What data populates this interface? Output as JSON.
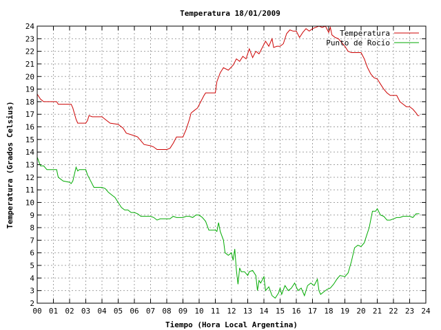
{
  "chart_data": {
    "type": "line",
    "title": "Temperatura 18/01/2009",
    "xlabel": "Tiempo (Hora Local Argentina)",
    "ylabel": "Temperatura (Grados Celsius)",
    "xlim": [
      0,
      24
    ],
    "ylim": [
      2,
      24
    ],
    "x_ticks": [
      "00",
      "01",
      "02",
      "03",
      "04",
      "05",
      "06",
      "07",
      "08",
      "09",
      "10",
      "11",
      "12",
      "13",
      "14",
      "15",
      "16",
      "17",
      "18",
      "19",
      "20",
      "21",
      "22",
      "23",
      "24"
    ],
    "y_ticks": [
      "2",
      "3",
      "4",
      "5",
      "6",
      "7",
      "8",
      "9",
      "10",
      "11",
      "12",
      "13",
      "14",
      "15",
      "16",
      "17",
      "18",
      "19",
      "20",
      "21",
      "22",
      "23",
      "24"
    ],
    "grid": true,
    "legend_position": "top-right",
    "series": [
      {
        "name": "Temperatura",
        "color": "#cc0000",
        "points": [
          [
            0.0,
            18.6
          ],
          [
            0.2,
            18.2
          ],
          [
            0.4,
            18.0
          ],
          [
            0.8,
            18.0
          ],
          [
            1.2,
            18.0
          ],
          [
            1.3,
            17.8
          ],
          [
            2.1,
            17.8
          ],
          [
            2.2,
            17.5
          ],
          [
            2.4,
            16.6
          ],
          [
            2.5,
            16.3
          ],
          [
            3.0,
            16.3
          ],
          [
            3.1,
            16.5
          ],
          [
            3.2,
            16.9
          ],
          [
            3.4,
            16.8
          ],
          [
            4.0,
            16.8
          ],
          [
            4.2,
            16.6
          ],
          [
            4.5,
            16.3
          ],
          [
            5.0,
            16.2
          ],
          [
            5.3,
            15.9
          ],
          [
            5.5,
            15.5
          ],
          [
            6.0,
            15.3
          ],
          [
            6.2,
            15.2
          ],
          [
            6.4,
            14.9
          ],
          [
            6.6,
            14.6
          ],
          [
            7.0,
            14.5
          ],
          [
            7.2,
            14.4
          ],
          [
            7.4,
            14.2
          ],
          [
            7.8,
            14.2
          ],
          [
            8.0,
            14.2
          ],
          [
            8.2,
            14.3
          ],
          [
            8.4,
            14.7
          ],
          [
            8.6,
            15.2
          ],
          [
            9.0,
            15.2
          ],
          [
            9.2,
            15.8
          ],
          [
            9.4,
            16.6
          ],
          [
            9.5,
            17.1
          ],
          [
            9.7,
            17.3
          ],
          [
            9.9,
            17.5
          ],
          [
            10.1,
            18.0
          ],
          [
            10.3,
            18.5
          ],
          [
            10.4,
            18.7
          ],
          [
            10.6,
            18.7
          ],
          [
            11.0,
            18.7
          ],
          [
            11.1,
            19.6
          ],
          [
            11.3,
            20.3
          ],
          [
            11.5,
            20.7
          ],
          [
            11.8,
            20.5
          ],
          [
            12.1,
            20.9
          ],
          [
            12.3,
            21.4
          ],
          [
            12.5,
            21.2
          ],
          [
            12.7,
            21.6
          ],
          [
            12.9,
            21.4
          ],
          [
            13.1,
            22.2
          ],
          [
            13.3,
            21.5
          ],
          [
            13.5,
            22.0
          ],
          [
            13.7,
            21.8
          ],
          [
            13.9,
            22.3
          ],
          [
            14.1,
            22.8
          ],
          [
            14.3,
            22.4
          ],
          [
            14.5,
            23.0
          ],
          [
            14.6,
            22.3
          ],
          [
            14.8,
            22.4
          ],
          [
            15.0,
            22.4
          ],
          [
            15.2,
            22.6
          ],
          [
            15.4,
            23.4
          ],
          [
            15.6,
            23.7
          ],
          [
            15.8,
            23.6
          ],
          [
            16.0,
            23.6
          ],
          [
            16.2,
            23.1
          ],
          [
            16.4,
            23.5
          ],
          [
            16.6,
            23.8
          ],
          [
            16.8,
            23.6
          ],
          [
            17.0,
            23.8
          ],
          [
            17.2,
            23.9
          ],
          [
            17.4,
            24.0
          ],
          [
            17.6,
            23.9
          ],
          [
            17.8,
            24.0
          ],
          [
            18.0,
            23.5
          ],
          [
            18.1,
            23.9
          ],
          [
            18.2,
            23.3
          ],
          [
            18.4,
            23.1
          ],
          [
            18.6,
            23.0
          ],
          [
            18.8,
            22.7
          ],
          [
            19.0,
            22.4
          ],
          [
            19.2,
            22.0
          ],
          [
            19.4,
            21.9
          ],
          [
            19.6,
            21.9
          ],
          [
            19.8,
            21.9
          ],
          [
            20.0,
            21.9
          ],
          [
            20.2,
            21.4
          ],
          [
            20.4,
            20.7
          ],
          [
            20.6,
            20.2
          ],
          [
            20.8,
            19.9
          ],
          [
            21.0,
            19.8
          ],
          [
            21.2,
            19.4
          ],
          [
            21.4,
            19.0
          ],
          [
            21.6,
            18.7
          ],
          [
            21.8,
            18.5
          ],
          [
            22.0,
            18.5
          ],
          [
            22.2,
            18.5
          ],
          [
            22.4,
            18.0
          ],
          [
            22.6,
            17.8
          ],
          [
            22.8,
            17.6
          ],
          [
            23.0,
            17.6
          ],
          [
            23.2,
            17.4
          ],
          [
            23.4,
            17.1
          ],
          [
            23.5,
            16.9
          ],
          [
            23.6,
            16.9
          ]
        ]
      },
      {
        "name": "Punto de Rocío",
        "color": "#00aa00",
        "points": [
          [
            0.0,
            13.6
          ],
          [
            0.2,
            12.9
          ],
          [
            0.4,
            12.9
          ],
          [
            0.6,
            12.6
          ],
          [
            1.0,
            12.6
          ],
          [
            1.2,
            12.6
          ],
          [
            1.3,
            12.0
          ],
          [
            1.6,
            11.7
          ],
          [
            2.0,
            11.6
          ],
          [
            2.1,
            11.5
          ],
          [
            2.2,
            11.7
          ],
          [
            2.4,
            12.8
          ],
          [
            2.5,
            12.5
          ],
          [
            2.6,
            12.6
          ],
          [
            3.0,
            12.6
          ],
          [
            3.1,
            12.2
          ],
          [
            3.3,
            11.7
          ],
          [
            3.5,
            11.2
          ],
          [
            4.0,
            11.2
          ],
          [
            4.2,
            11.1
          ],
          [
            4.4,
            10.8
          ],
          [
            4.6,
            10.6
          ],
          [
            4.8,
            10.4
          ],
          [
            5.0,
            10.0
          ],
          [
            5.2,
            9.6
          ],
          [
            5.4,
            9.4
          ],
          [
            5.6,
            9.4
          ],
          [
            5.8,
            9.2
          ],
          [
            6.0,
            9.2
          ],
          [
            6.2,
            9.1
          ],
          [
            6.4,
            8.9
          ],
          [
            6.6,
            8.9
          ],
          [
            7.0,
            8.9
          ],
          [
            7.2,
            8.8
          ],
          [
            7.4,
            8.6
          ],
          [
            7.6,
            8.7
          ],
          [
            8.0,
            8.7
          ],
          [
            8.2,
            8.7
          ],
          [
            8.4,
            8.9
          ],
          [
            8.6,
            8.8
          ],
          [
            9.0,
            8.8
          ],
          [
            9.2,
            8.9
          ],
          [
            9.4,
            8.9
          ],
          [
            9.6,
            8.8
          ],
          [
            9.8,
            9.0
          ],
          [
            10.0,
            9.0
          ],
          [
            10.2,
            8.8
          ],
          [
            10.4,
            8.5
          ],
          [
            10.6,
            7.8
          ],
          [
            11.0,
            7.8
          ],
          [
            11.1,
            7.7
          ],
          [
            11.2,
            8.4
          ],
          [
            11.3,
            7.7
          ],
          [
            11.5,
            7.0
          ],
          [
            11.6,
            6.0
          ],
          [
            11.8,
            5.8
          ],
          [
            12.0,
            6.0
          ],
          [
            12.1,
            5.4
          ],
          [
            12.2,
            6.3
          ],
          [
            12.3,
            4.6
          ],
          [
            12.4,
            3.5
          ],
          [
            12.5,
            4.8
          ],
          [
            12.6,
            4.5
          ],
          [
            12.8,
            4.5
          ],
          [
            13.0,
            4.2
          ],
          [
            13.1,
            4.5
          ],
          [
            13.3,
            4.6
          ],
          [
            13.5,
            4.2
          ],
          [
            13.6,
            3.0
          ],
          [
            13.7,
            3.8
          ],
          [
            13.8,
            3.6
          ],
          [
            14.0,
            4.1
          ],
          [
            14.1,
            3.0
          ],
          [
            14.3,
            3.3
          ],
          [
            14.5,
            2.6
          ],
          [
            14.7,
            2.4
          ],
          [
            14.9,
            2.8
          ],
          [
            15.0,
            3.2
          ],
          [
            15.1,
            2.7
          ],
          [
            15.3,
            3.4
          ],
          [
            15.5,
            3.0
          ],
          [
            15.7,
            3.2
          ],
          [
            15.9,
            3.6
          ],
          [
            16.1,
            3.0
          ],
          [
            16.3,
            3.2
          ],
          [
            16.5,
            2.6
          ],
          [
            16.7,
            3.4
          ],
          [
            16.9,
            3.6
          ],
          [
            17.1,
            3.4
          ],
          [
            17.3,
            3.9
          ],
          [
            17.4,
            3.0
          ],
          [
            17.5,
            2.7
          ],
          [
            17.7,
            2.9
          ],
          [
            17.9,
            3.1
          ],
          [
            18.1,
            3.2
          ],
          [
            18.3,
            3.5
          ],
          [
            18.5,
            3.9
          ],
          [
            18.7,
            4.2
          ],
          [
            19.0,
            4.1
          ],
          [
            19.2,
            4.4
          ],
          [
            19.4,
            5.3
          ],
          [
            19.6,
            6.4
          ],
          [
            19.8,
            6.6
          ],
          [
            20.0,
            6.5
          ],
          [
            20.2,
            6.8
          ],
          [
            20.3,
            7.2
          ],
          [
            20.5,
            8.0
          ],
          [
            20.7,
            9.3
          ],
          [
            20.9,
            9.3
          ],
          [
            21.0,
            9.5
          ],
          [
            21.2,
            9.0
          ],
          [
            21.4,
            8.9
          ],
          [
            21.6,
            8.6
          ],
          [
            21.8,
            8.6
          ],
          [
            22.0,
            8.7
          ],
          [
            22.2,
            8.8
          ],
          [
            22.4,
            8.8
          ],
          [
            22.6,
            8.9
          ],
          [
            22.8,
            8.9
          ],
          [
            23.0,
            8.9
          ],
          [
            23.2,
            8.8
          ],
          [
            23.4,
            9.1
          ],
          [
            23.6,
            9.1
          ]
        ]
      }
    ]
  }
}
